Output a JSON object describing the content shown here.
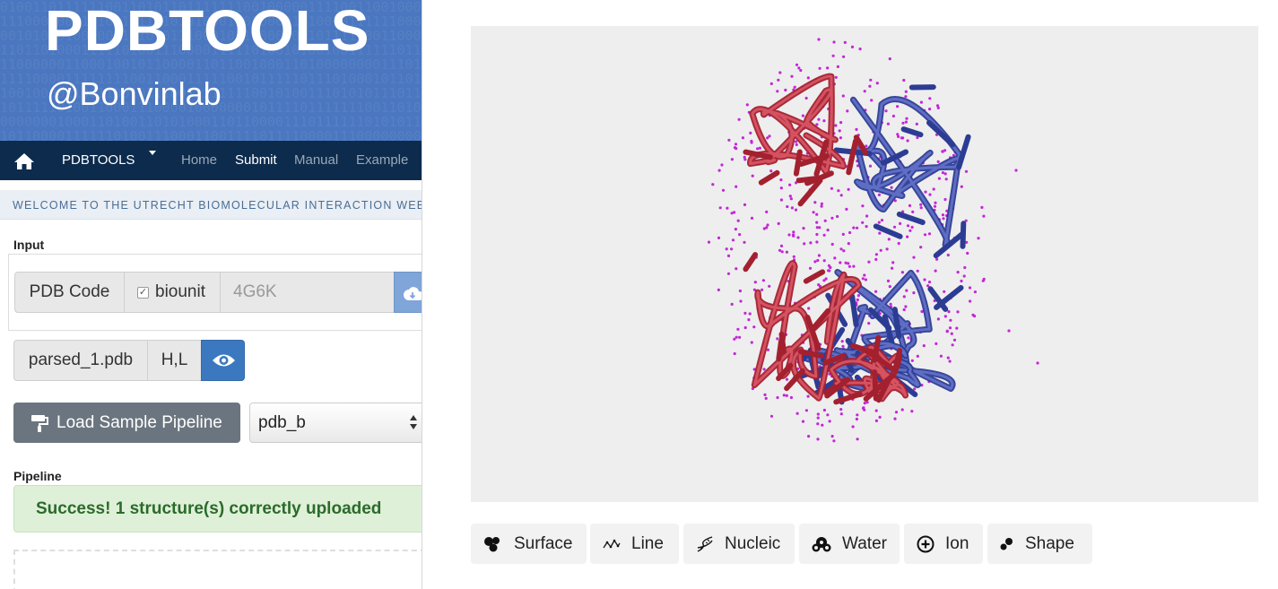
{
  "header": {
    "title": "PDBTOOLS",
    "subtitle": "@Bonvinlab"
  },
  "navbar": {
    "brand": "PDBTOOLS",
    "items": [
      "Home",
      "Submit",
      "Manual",
      "Example"
    ],
    "active": "Submit"
  },
  "welcome": "WELCOME TO THE UTRECHT BIOMOLECULAR INTERACTION WEB PORTAL",
  "input": {
    "label": "Input",
    "pdb_code_label": "PDB Code",
    "biounit_label": "biounit",
    "biounit_checked": true,
    "code_placeholder": "4G6K"
  },
  "file": {
    "name": "parsed_1.pdb",
    "chains": "H,L"
  },
  "pipeline_loader": {
    "button_label": "Load Sample Pipeline",
    "selected": "pdb_b"
  },
  "pipeline": {
    "label": "Pipeline",
    "message": "Success! 1 structure(s) correctly uploaded"
  },
  "viewer": {
    "colors": {
      "chain_h": "#a3202f",
      "chain_l": "#2d3c93",
      "water": "#c327d6",
      "background": "#eeeeee"
    },
    "buttons": [
      {
        "label": "Surface",
        "icon": "surface-icon"
      },
      {
        "label": "Line",
        "icon": "line-icon"
      },
      {
        "label": "Nucleic",
        "icon": "nucleic-icon"
      },
      {
        "label": "Water",
        "icon": "water-icon"
      },
      {
        "label": "Ion",
        "icon": "ion-icon"
      },
      {
        "label": "Shape",
        "icon": "shape-icon"
      }
    ]
  }
}
